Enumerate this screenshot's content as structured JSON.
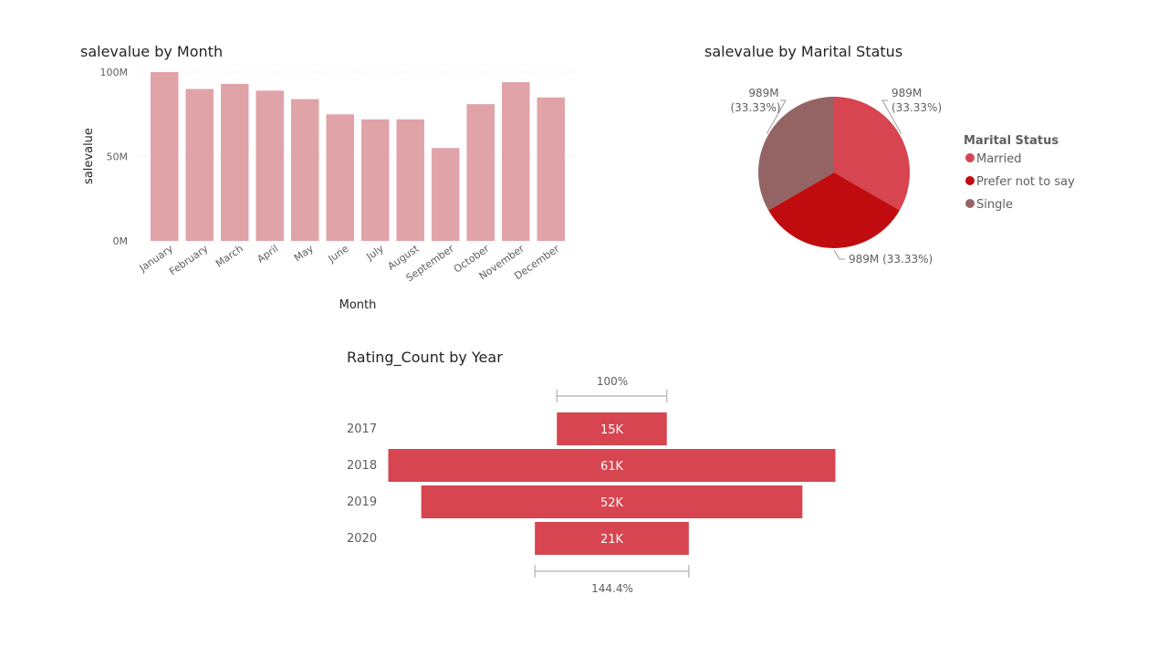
{
  "chart_data": [
    {
      "type": "bar",
      "title": "salevalue by Month",
      "xlabel": "Month",
      "ylabel": "salevalue",
      "ylim": [
        0,
        100000000
      ],
      "yticks": [
        "0M",
        "50M",
        "100M"
      ],
      "categories": [
        "January",
        "February",
        "March",
        "April",
        "May",
        "June",
        "July",
        "August",
        "September",
        "October",
        "November",
        "December"
      ],
      "values": [
        100000000,
        90000000,
        93000000,
        89000000,
        84000000,
        75000000,
        72000000,
        72000000,
        55000000,
        81000000,
        94000000,
        85000000
      ],
      "color": "#e0a3a8",
      "grid": true
    },
    {
      "type": "pie",
      "title": "salevalue by Marital Status",
      "legend_title": "Marital Status",
      "legend_position": "right",
      "slices": [
        {
          "name": "Married",
          "value": 989,
          "label": "989M",
          "pct": "(33.33%)",
          "color": "#d64550"
        },
        {
          "name": "Prefer not to say",
          "value": 989,
          "label": "989M",
          "pct": "(33.33%)",
          "color": "#c00c0e"
        },
        {
          "name": "Single",
          "value": 989,
          "label": "989M",
          "pct": "(33.33%)",
          "color": "#946464"
        }
      ]
    },
    {
      "type": "bar",
      "subtype": "funnel",
      "title": "Rating_Count by Year",
      "categories": [
        "2017",
        "2018",
        "2019",
        "2020"
      ],
      "values": [
        15000,
        61000,
        52000,
        21000
      ],
      "value_labels": [
        "15K",
        "61K",
        "52K",
        "21K"
      ],
      "top_label": "100%",
      "bottom_label": "144.4%",
      "color": "#d64550"
    }
  ]
}
